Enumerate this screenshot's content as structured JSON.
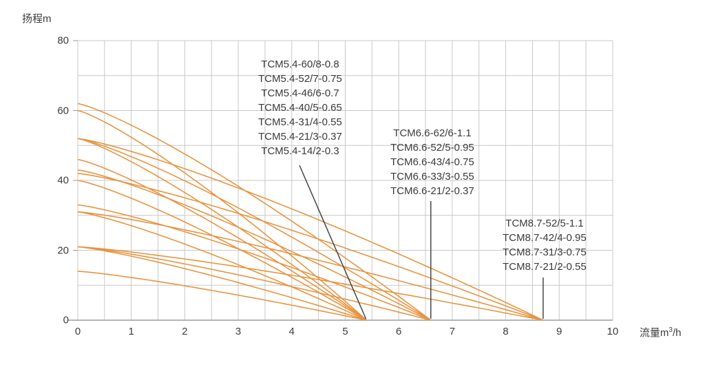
{
  "colors": {
    "curve": "#E89440",
    "grid": "#c8c8c8",
    "axis": "#9b9b9b",
    "pointer": "#454545",
    "text": "#3c3c3c"
  },
  "axes": {
    "y_title": "扬程m",
    "x_title_main": "流量m",
    "x_title_sup": "3",
    "x_title_end": "/h",
    "x_tick_labels": [
      "0",
      "1",
      "2",
      "3",
      "4",
      "5",
      "6",
      "7",
      "8",
      "9",
      "10"
    ],
    "y_tick_labels": [
      "0",
      "20",
      "40",
      "60",
      "80"
    ]
  },
  "chart_data": {
    "type": "line",
    "title": "",
    "xlabel": "流量m³/h",
    "ylabel": "扬程m",
    "xlim": [
      0,
      10
    ],
    "ylim": [
      0,
      80
    ],
    "x_major_ticks": [
      0,
      1,
      2,
      3,
      4,
      5,
      6,
      7,
      8,
      9,
      10
    ],
    "y_major_ticks": [
      0,
      20,
      40,
      60,
      80
    ],
    "x_grid_step": 0.5,
    "y_grid_step": 10,
    "grid": true,
    "legend_position": "inline-label-blocks",
    "curve_model": "H = H0 * (1 - (Q/Qmax)^1.22), each curve runs from (0, H0) to (Qmax, 0)",
    "families": [
      {
        "name": "TCM5.4",
        "q_max": 5.4,
        "labels": [
          "TCM5.4-60/8-0.8",
          "TCM5.4-52/7-0.75",
          "TCM5.4-46/6-0.7",
          "TCM5.4-40/5-0.65",
          "TCM5.4-31/4-0.55",
          "TCM5.4-21/3-0.37",
          "TCM5.4-14/2-0.3"
        ],
        "shutoff_heads": [
          60,
          52,
          46,
          40,
          31,
          21,
          14
        ],
        "series_points_note": "each series: starts at x=0 with y=shutoff head, ends at x=5.4 with y=0"
      },
      {
        "name": "TCM6.6",
        "q_max": 6.6,
        "labels": [
          "TCM6.6-62/6-1.1",
          "TCM6.6-52/5-0.95",
          "TCM6.6-43/4-0.75",
          "TCM6.6-33/3-0.55",
          "TCM6.6-21/2-0.37"
        ],
        "shutoff_heads": [
          62,
          52,
          43,
          33,
          21
        ],
        "series_points_note": "each series: starts at x=0 with y=shutoff head, ends at x=6.6 with y=0"
      },
      {
        "name": "TCM8.7",
        "q_max": 8.7,
        "labels": [
          "TCM8.7-52/5-1.1",
          "TCM8.7-42/4-0.95",
          "TCM8.7-31/3-0.75",
          "TCM8.7-21/2-0.55"
        ],
        "shutoff_heads": [
          52,
          42,
          31,
          21
        ],
        "series_points_note": "each series: starts at x=0 with y=shutoff head, ends at x=8.7 with y=0"
      }
    ]
  }
}
